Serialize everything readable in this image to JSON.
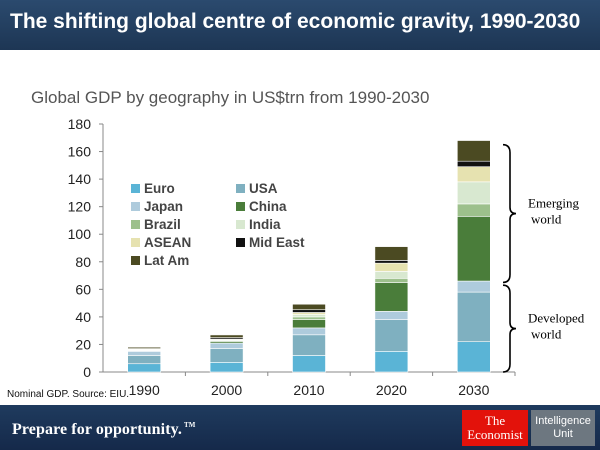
{
  "header": {
    "title": "The shifting global centre of economic gravity, 1990-2030"
  },
  "source": "Nominal GDP. Source: EIU.",
  "footer": {
    "tagline": "Prepare for opportunity.",
    "tagline_mark": "TM",
    "logo_economist": [
      "The",
      "Economist"
    ],
    "logo_eiu": [
      "Intelligence",
      "Unit"
    ]
  },
  "colors": {
    "header_bg": "#2b4a6e",
    "footer_bg": "#1f3b5e",
    "economist_red": "#e3120b"
  },
  "chart_data": {
    "type": "bar",
    "stacked": true,
    "title": "Global GDP by geography in US$trn from 1990-2030",
    "xlabel": "",
    "ylabel": "",
    "ylim": [
      0,
      180
    ],
    "yticks": [
      0,
      20,
      40,
      60,
      80,
      100,
      120,
      140,
      160,
      180
    ],
    "grid": false,
    "legend_position": "top-left",
    "categories": [
      "1990",
      "2000",
      "2010",
      "2020",
      "2030"
    ],
    "series": [
      {
        "name": "Euro",
        "color": "#5ab4d6",
        "values": [
          6,
          7,
          12,
          15,
          22
        ]
      },
      {
        "name": "USA",
        "color": "#7fb0c0",
        "values": [
          6,
          10,
          15,
          23,
          36
        ]
      },
      {
        "name": "Japan",
        "color": "#aecbdc",
        "values": [
          3,
          4,
          5,
          6,
          8
        ]
      },
      {
        "name": "China",
        "color": "#4a7d3a",
        "values": [
          0.4,
          1.2,
          6,
          21,
          47
        ]
      },
      {
        "name": "Brazil",
        "color": "#9dc08c",
        "values": [
          0.5,
          0.6,
          2,
          3,
          9
        ]
      },
      {
        "name": "India",
        "color": "#d8e8d0",
        "values": [
          0.3,
          0.5,
          1.7,
          5,
          16
        ]
      },
      {
        "name": "ASEAN",
        "color": "#e6e2b0",
        "values": [
          0.3,
          0.6,
          1.5,
          6,
          11
        ]
      },
      {
        "name": "Mid East",
        "color": "#111111",
        "values": [
          0.5,
          1,
          2,
          2,
          4
        ]
      },
      {
        "name": "Lat Am",
        "color": "#4b4a22",
        "values": [
          1,
          2,
          4,
          10,
          15
        ]
      }
    ],
    "annotations": [
      {
        "text": [
          "Emerging",
          "world"
        ],
        "from": 65,
        "to": 165
      },
      {
        "text": [
          "Developed",
          "world"
        ],
        "from": 0,
        "to": 63
      }
    ]
  }
}
